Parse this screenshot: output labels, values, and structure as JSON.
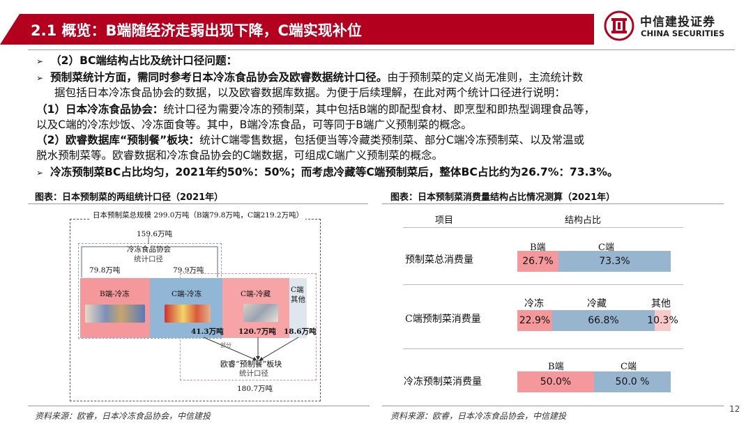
{
  "title": "2.1 概览：B端随经济走弱出现下降，C端实现补位",
  "logo": {
    "cn": "中信建投证券",
    "en": "CHINA SECURITIES"
  },
  "body": {
    "line1": "（2）BC端结构占比及统计口径问题：",
    "line2_bold": "预制菜统计方面，需同时参考日本冷冻食品协会及欧睿数据统计口径。",
    "line2_rest": "由于预制菜的定义尚无准则，主流统计数",
    "line3": "据包括日本冷冻食品协会的数据，以及欧睿数据库数据。为便于后续理解，在此对两个统计口径进行说明：",
    "line4_bold": "（1）日本冷冻食品协会：",
    "line4_rest": "统计口径为需要冷冻的预制菜，其中包括B端的即配型食材、即烹型和即热型调理食品等，",
    "line5": "以及C端的冷冻炒饭、冷冻面食等。其中，B端冷冻食品，可等同于B端广义预制菜的概念。",
    "line6_bold": "（2）欧睿数据库“预制餐”板块：",
    "line6_rest": "统计C端零售数据，包括便当等冷藏类预制菜、部分C端冷冻预制菜、以及常温或",
    "line7": "脱水预制菜等。欧睿数据和冷冻食品协会的C端数据，可组成C端广义预制菜的概念。",
    "line8": "冷冻预制菜BC占比均匀，2021年约50%：50%；而考虑冷藏等C端预制菜后，整体BC占比约为26.7%：73.3%。"
  },
  "left_figure": {
    "caption": "图表：日本预制菜的两组统计口径（2021年）",
    "total": "日本预制菜总规模 299.0万吨（B端79.8万吨，C端219.2万吨）",
    "frozen_total": "159.6万吨",
    "frozen_assoc": "冷冻食品协会",
    "frozen_scope": "统计口径",
    "b_frozen_val": "79.8万吨",
    "c_frozen_val": "79.9万吨",
    "seg_b_frozen": "B端-冷冻",
    "seg_c_frozen": "C端-冷冻",
    "seg_c_chilled": "C端-冷藏",
    "seg_c_other_1": "C端",
    "seg_c_other_2": "其他",
    "val_413": "41.3万吨",
    "val_1207": "120.7万吨",
    "val_186": "18.6万吨",
    "partial": "部分",
    "euromonitor": "欧睿“预制餐”板块",
    "euro_scope": "统计口径",
    "euro_total": "180.7万吨",
    "colors": {
      "b": "#f4989b",
      "c_frozen": "#92b6d6",
      "c_chilled": "#f7a4a7",
      "c_other": "#dfe6ee"
    }
  },
  "right_figure": {
    "caption": "图表：日本预制菜消费量结构占比情况测算（2021年）",
    "header_item": "项目",
    "header_share": "结构占比",
    "rows": [
      {
        "label": "预制菜总消费量",
        "segments": [
          {
            "name": "B端",
            "value": 26.7,
            "text": "26.7%"
          },
          {
            "name": "C端",
            "value": 73.3,
            "text": "73.3%"
          }
        ]
      },
      {
        "label": "C端预制菜消费量",
        "segments": [
          {
            "name": "冷冻",
            "value": 22.9,
            "text": "22.9%"
          },
          {
            "name": "冷藏",
            "value": 66.8,
            "text": "66.8%"
          },
          {
            "name": "其他",
            "value": 10.3,
            "text": "10.3%"
          }
        ]
      },
      {
        "label": "冷冻预制菜消费量",
        "segments": [
          {
            "name": "B端",
            "value": 50.0,
            "text": "50.0%"
          },
          {
            "name": "C端",
            "value": 50.0,
            "text": "50.0 %"
          }
        ]
      }
    ],
    "colors": {
      "pink": "#f4989b",
      "blue": "#98b5cf",
      "light": "#f9c9c9"
    }
  },
  "source_left": "资料来源：欧睿，日本冷冻食品协会，中信建投",
  "source_right": "资料来源：欧睿，日本冷冻食品协会，中信建投",
  "page_number": "12"
}
